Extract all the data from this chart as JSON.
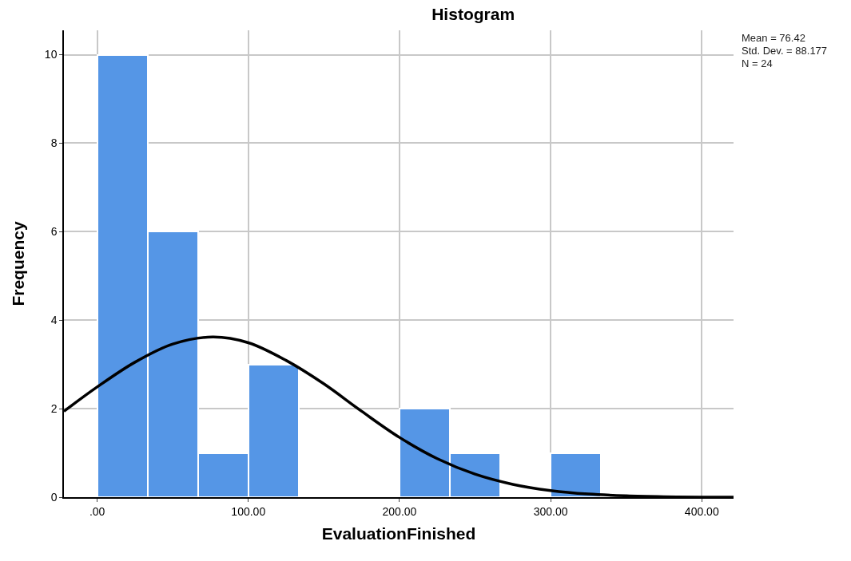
{
  "chart_data": {
    "type": "histogram",
    "title": "Histogram",
    "xlabel": "EvaluationFinished",
    "ylabel": "Frequency",
    "bins": [
      0,
      33.33,
      66.67,
      100,
      133.33,
      166.67,
      200,
      233.33,
      266.67,
      300,
      333.33
    ],
    "values": [
      10,
      6,
      1,
      3,
      0,
      0,
      2,
      1,
      0,
      1
    ],
    "color": "#5596e6",
    "series": [
      {
        "type": "line",
        "color": "#000000",
        "x": [
          -22,
          0,
          25,
          50,
          76.42,
          100,
          125,
          150,
          175,
          200,
          225,
          250,
          275,
          300,
          325,
          350,
          375,
          400,
          421
        ],
        "values": [
          1.94,
          2.49,
          3.05,
          3.46,
          3.62,
          3.49,
          3.09,
          2.56,
          1.94,
          1.35,
          0.87,
          0.52,
          0.29,
          0.15,
          0.07,
          0.03,
          0.01,
          0,
          0
        ]
      }
    ],
    "xlim": [
      -22,
      421
    ],
    "xticks": [
      {
        "value": 0,
        "label": ".00"
      },
      {
        "value": 100,
        "label": "100.00"
      },
      {
        "value": 200,
        "label": "200.00"
      },
      {
        "value": 300,
        "label": "300.00"
      },
      {
        "value": 400,
        "label": "400.00"
      }
    ],
    "ylim": [
      0,
      10.55
    ],
    "yticks": [
      0,
      2,
      4,
      6,
      8,
      10
    ],
    "grid": true,
    "marker": "none",
    "line_style": "solid",
    "annotations": [
      "Mean = 76.42",
      "Std. Dev. = 88.177",
      "N = 24"
    ]
  }
}
